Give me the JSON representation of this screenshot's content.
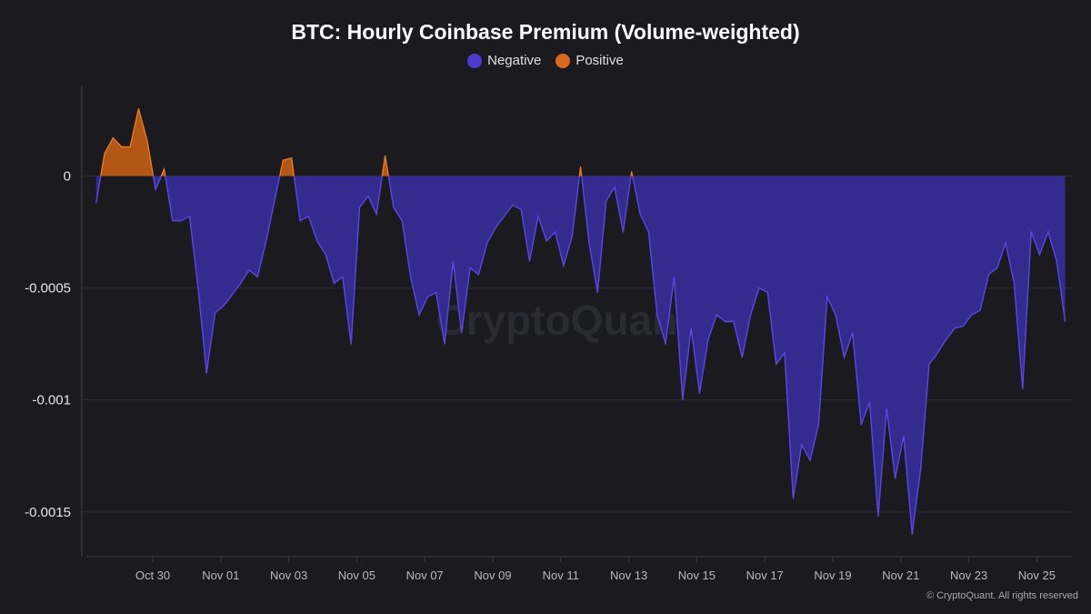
{
  "chart_data": {
    "type": "area",
    "title": "BTC: Hourly Coinbase Premium (Volume-weighted)",
    "legend": [
      {
        "name": "Negative",
        "color": "#4b3bd1"
      },
      {
        "name": "Positive",
        "color": "#d8691f"
      }
    ],
    "legend_position": "top-center",
    "colors": {
      "negative_fill": "#352a8e",
      "negative_line": "#5a47e6",
      "positive_fill": "#b35717",
      "positive_line": "#e37d22",
      "background": "#1b1a1f"
    },
    "xlabel": "",
    "ylabel": "",
    "ylim": [
      -0.0017,
      0.0004
    ],
    "grid": true,
    "y_ticks": [
      0,
      -0.0005,
      -0.001,
      -0.0015
    ],
    "y_tick_labels": [
      "0",
      "-0.0005",
      "-0.001",
      "-0.0015"
    ],
    "x_ticks": [
      "Oct 30",
      "Nov 01",
      "Nov 03",
      "Nov 05",
      "Nov 07",
      "Nov 09",
      "Nov 11",
      "Nov 13",
      "Nov 15",
      "Nov 17",
      "Nov 19",
      "Nov 21",
      "Nov 23",
      "Nov 25"
    ],
    "x": [
      "Oct 28 08:00",
      "Oct 28 14:00",
      "Oct 28 20:00",
      "Oct 29 02:00",
      "Oct 29 08:00",
      "Oct 29 14:00",
      "Oct 29 20:00",
      "Oct 30 02:00",
      "Oct 30 08:00",
      "Oct 30 14:00",
      "Oct 30 20:00",
      "Oct 31 02:00",
      "Oct 31 08:00",
      "Oct 31 14:00",
      "Oct 31 20:00",
      "Nov 01 02:00",
      "Nov 01 08:00",
      "Nov 01 14:00",
      "Nov 01 20:00",
      "Nov 02 02:00",
      "Nov 02 08:00",
      "Nov 02 14:00",
      "Nov 02 20:00",
      "Nov 03 02:00",
      "Nov 03 08:00",
      "Nov 03 14:00",
      "Nov 03 20:00",
      "Nov 04 02:00",
      "Nov 04 08:00",
      "Nov 04 14:00",
      "Nov 04 20:00",
      "Nov 05 02:00",
      "Nov 05 08:00",
      "Nov 05 14:00",
      "Nov 05 20:00",
      "Nov 06 02:00",
      "Nov 06 08:00",
      "Nov 06 14:00",
      "Nov 06 20:00",
      "Nov 07 02:00",
      "Nov 07 08:00",
      "Nov 07 14:00",
      "Nov 07 20:00",
      "Nov 08 02:00",
      "Nov 08 08:00",
      "Nov 08 14:00",
      "Nov 08 20:00",
      "Nov 09 02:00",
      "Nov 09 08:00",
      "Nov 09 14:00",
      "Nov 09 20:00",
      "Nov 10 02:00",
      "Nov 10 08:00",
      "Nov 10 14:00",
      "Nov 10 20:00",
      "Nov 11 02:00",
      "Nov 11 08:00",
      "Nov 11 14:00",
      "Nov 11 20:00",
      "Nov 12 02:00",
      "Nov 12 08:00",
      "Nov 12 14:00",
      "Nov 12 20:00",
      "Nov 13 02:00",
      "Nov 13 08:00",
      "Nov 13 14:00",
      "Nov 13 20:00",
      "Nov 14 02:00",
      "Nov 14 08:00",
      "Nov 14 14:00",
      "Nov 14 20:00",
      "Nov 15 02:00",
      "Nov 15 08:00",
      "Nov 15 14:00",
      "Nov 15 20:00",
      "Nov 16 02:00",
      "Nov 16 08:00",
      "Nov 16 14:00",
      "Nov 16 20:00",
      "Nov 17 02:00",
      "Nov 17 08:00",
      "Nov 17 14:00",
      "Nov 17 20:00",
      "Nov 18 02:00",
      "Nov 18 08:00",
      "Nov 18 14:00",
      "Nov 18 20:00",
      "Nov 19 02:00",
      "Nov 19 08:00",
      "Nov 19 14:00",
      "Nov 19 20:00",
      "Nov 20 02:00",
      "Nov 20 08:00",
      "Nov 20 14:00",
      "Nov 20 20:00",
      "Nov 21 02:00",
      "Nov 21 08:00",
      "Nov 21 14:00",
      "Nov 21 20:00",
      "Nov 22 02:00",
      "Nov 22 08:00",
      "Nov 22 14:00",
      "Nov 22 20:00",
      "Nov 23 02:00",
      "Nov 23 08:00",
      "Nov 23 14:00",
      "Nov 23 20:00",
      "Nov 24 02:00",
      "Nov 24 08:00",
      "Nov 24 14:00",
      "Nov 24 20:00",
      "Nov 25 02:00",
      "Nov 25 08:00",
      "Nov 25 14:00",
      "Nov 25 20:00"
    ],
    "values": [
      -0.00012,
      0.0001,
      0.00017,
      0.00013,
      0.00013,
      0.0003,
      0.00016,
      -6e-05,
      3e-05,
      -0.0002,
      -0.0002,
      -0.00018,
      -0.0005,
      -0.00088,
      -0.00061,
      -0.00058,
      -0.00053,
      -0.00048,
      -0.00042,
      -0.00045,
      -0.00029,
      -0.00011,
      7e-05,
      8e-05,
      -0.0002,
      -0.00018,
      -0.00029,
      -0.00035,
      -0.00048,
      -0.00045,
      -0.00075,
      -0.00014,
      -9e-05,
      -0.00017,
      9e-05,
      -0.00014,
      -0.0002,
      -0.00045,
      -0.00062,
      -0.00054,
      -0.00052,
      -0.00075,
      -0.00038,
      -0.0007,
      -0.00041,
      -0.00044,
      -0.0003,
      -0.00023,
      -0.00018,
      -0.00013,
      -0.00015,
      -0.00038,
      -0.00018,
      -0.00029,
      -0.00025,
      -0.0004,
      -0.00027,
      4e-05,
      -0.0003,
      -0.00052,
      -0.00011,
      -5e-05,
      -0.00025,
      2e-05,
      -0.00017,
      -0.00025,
      -0.00062,
      -0.00075,
      -0.00045,
      -0.001,
      -0.00068,
      -0.00097,
      -0.00073,
      -0.00062,
      -0.00065,
      -0.00065,
      -0.00081,
      -0.00062,
      -0.0005,
      -0.00052,
      -0.00084,
      -0.00079,
      -0.00144,
      -0.0012,
      -0.00127,
      -0.00111,
      -0.00054,
      -0.00062,
      -0.00081,
      -0.0007,
      -0.00111,
      -0.00101,
      -0.00152,
      -0.00104,
      -0.00135,
      -0.00116,
      -0.0016,
      -0.00131,
      -0.00084,
      -0.00079,
      -0.00073,
      -0.00068,
      -0.00067,
      -0.00062,
      -0.0006,
      -0.00044,
      -0.00041,
      -0.0003,
      -0.00048,
      -0.00095,
      -0.00025,
      -0.00035,
      -0.00025,
      -0.00038,
      -0.00065
    ]
  },
  "watermark": "CryptoQuant",
  "footer": "© CryptoQuant. All rights reserved"
}
